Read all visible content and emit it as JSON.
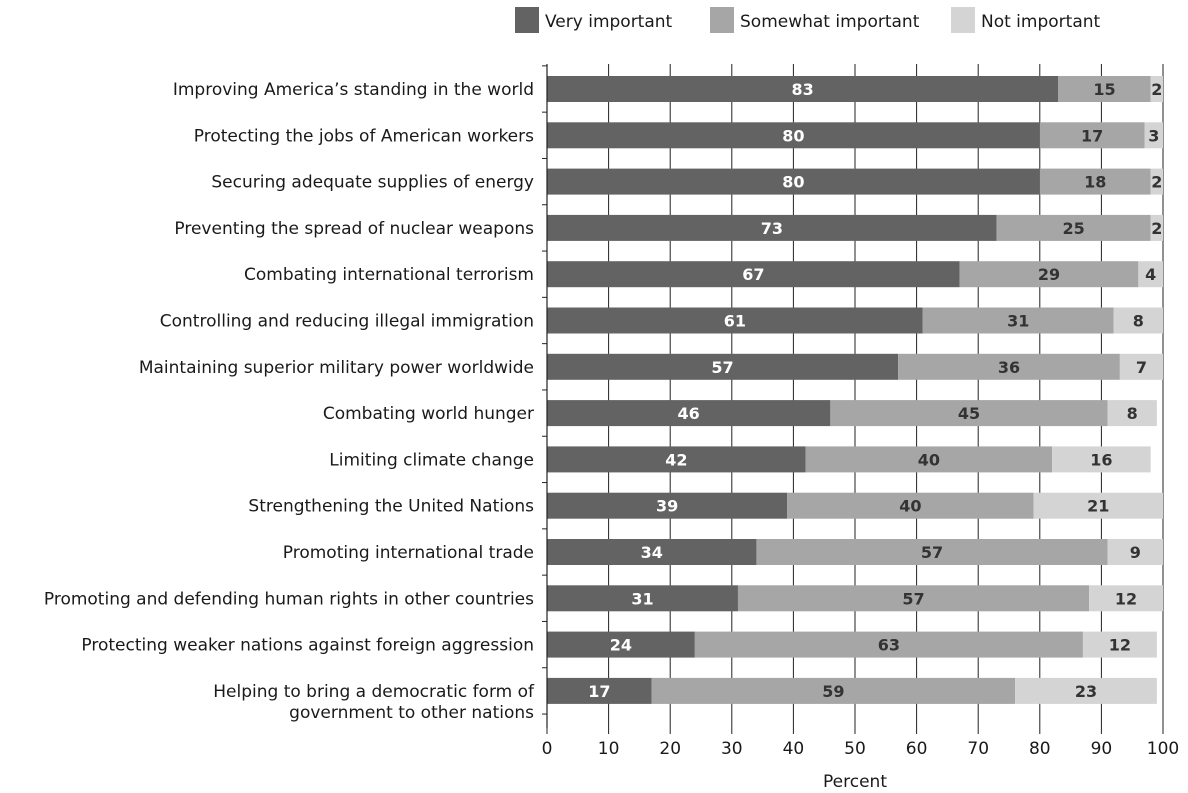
{
  "chart_data": {
    "type": "bar",
    "orientation": "horizontal",
    "stacked": true,
    "categories": [
      "Improving America’s standing in the world",
      "Protecting the jobs of American workers",
      "Securing adequate supplies of energy",
      "Preventing the spread of nuclear weapons",
      "Combating international terrorism",
      "Controlling and reducing illegal immigration",
      "Maintaining superior military power worldwide",
      "Combating world hunger",
      "Limiting climate change",
      "Strengthening the United Nations",
      "Promoting international trade",
      "Promoting and defending human rights in other countries",
      "Protecting weaker nations against foreign aggression",
      "Helping to bring a democratic form of\ngovernment to other nations"
    ],
    "series": [
      {
        "name": "Very important",
        "color": "#636363",
        "label_color": "#ffffff",
        "values": [
          83,
          80,
          80,
          73,
          67,
          61,
          57,
          46,
          42,
          39,
          34,
          31,
          24,
          17
        ]
      },
      {
        "name": "Somewhat important",
        "color": "#a6a6a6",
        "label_color": "#333333",
        "values": [
          15,
          17,
          18,
          25,
          29,
          31,
          36,
          45,
          40,
          40,
          57,
          57,
          63,
          59
        ]
      },
      {
        "name": "Not important",
        "color": "#d4d4d4",
        "label_color": "#333333",
        "values": [
          2,
          3,
          2,
          2,
          4,
          8,
          7,
          8,
          16,
          21,
          9,
          12,
          12,
          23
        ]
      }
    ],
    "xlabel": "Percent",
    "xlim": [
      0,
      100
    ],
    "xticks": [
      0,
      10,
      20,
      30,
      40,
      50,
      60,
      70,
      80,
      90,
      100
    ],
    "grid": true,
    "legend": "top"
  }
}
